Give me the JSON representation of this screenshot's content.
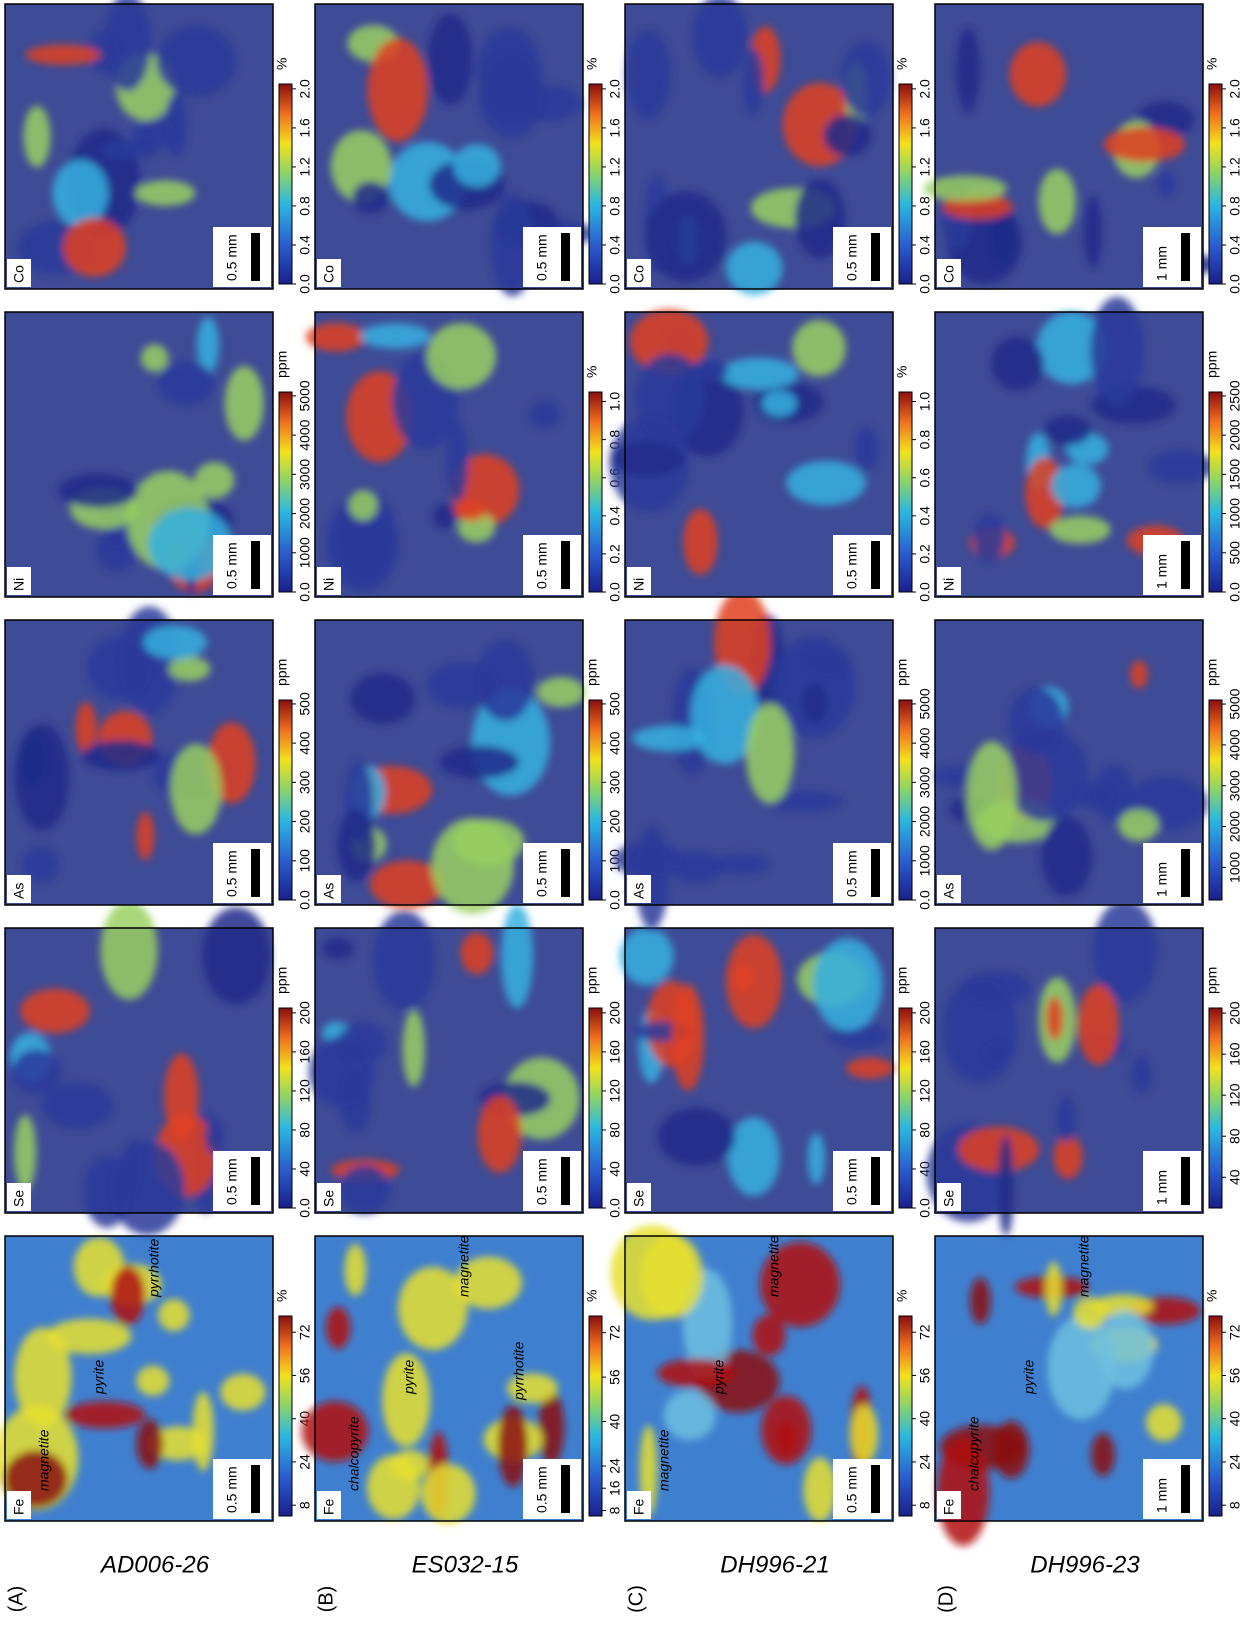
{
  "rows": [
    {
      "label": "(A)",
      "sample": "AD006-26",
      "panels": [
        {
          "element": "Fe",
          "scale": "0.5 mm",
          "unit": "%",
          "lim": [
            4,
            78
          ],
          "ticks": [
            8,
            24,
            40,
            56,
            72
          ],
          "annotations": [
            "magnetite",
            "pyrite",
            "pyrrhotite"
          ]
        },
        {
          "element": "Se",
          "scale": "0.5 mm",
          "unit": "ppm",
          "lim": [
            0,
            205
          ],
          "ticks": [
            {
              "value": 0,
              "label": "0.0"
            },
            40,
            80,
            120,
            160,
            200
          ]
        },
        {
          "element": "As",
          "scale": "0.5 mm",
          "unit": "ppm",
          "lim": [
            0,
            510
          ],
          "ticks": [
            {
              "value": 0,
              "label": "0.0"
            },
            100,
            200,
            300,
            400,
            500
          ]
        },
        {
          "element": "Ni",
          "scale": "0.5 mm",
          "unit": "ppm",
          "lim": [
            0,
            5100
          ],
          "ticks": [
            {
              "value": 0,
              "label": "0.0"
            },
            1000,
            2000,
            3000,
            4000,
            5000
          ]
        },
        {
          "element": "Co",
          "scale": "0.5 mm",
          "unit": "%",
          "lim": [
            0,
            2.05
          ],
          "ticks": [
            {
              "value": 0,
              "label": "0.0"
            },
            0.4,
            0.8,
            1.2,
            1.6,
            {
              "value": 2,
              "label": "2.0"
            }
          ]
        }
      ]
    },
    {
      "label": "(B)",
      "sample": "ES032-15",
      "panels": [
        {
          "element": "Fe",
          "scale": "0.5 mm",
          "unit": "%",
          "lim": [
            6,
            78
          ],
          "ticks": [
            8,
            16,
            24,
            40,
            56,
            72
          ],
          "annotations": [
            "chalcopyrite",
            "pyrite",
            "magnetite",
            "pyrrhotite"
          ]
        },
        {
          "element": "Se",
          "scale": "0.5 mm",
          "unit": "ppm",
          "lim": [
            0,
            205
          ],
          "ticks": [
            {
              "value": 0,
              "label": "0.0"
            },
            40,
            80,
            120,
            160,
            200
          ]
        },
        {
          "element": "As",
          "scale": "0.5 mm",
          "unit": "ppm",
          "lim": [
            0,
            510
          ],
          "ticks": [
            {
              "value": 0,
              "label": "0.0"
            },
            100,
            200,
            300,
            400,
            500
          ]
        },
        {
          "element": "Ni",
          "scale": "0.5 mm",
          "unit": "%",
          "lim": [
            0,
            1.05
          ],
          "ticks": [
            {
              "value": 0,
              "label": "0.0"
            },
            0.2,
            0.4,
            0.6,
            0.8,
            {
              "value": 1,
              "label": "1.0"
            }
          ]
        },
        {
          "element": "Co",
          "scale": "0.5 mm",
          "unit": "%",
          "lim": [
            0,
            2.05
          ],
          "ticks": [
            {
              "value": 0,
              "label": "0.0"
            },
            0.4,
            0.8,
            1.2,
            1.6,
            {
              "value": 2,
              "label": "2.0"
            }
          ]
        }
      ]
    },
    {
      "label": "(C)",
      "sample": "DH996-21",
      "panels": [
        {
          "element": "Fe",
          "scale": "0.5 mm",
          "unit": "%",
          "lim": [
            4,
            78
          ],
          "ticks": [
            8,
            24,
            40,
            56,
            72
          ],
          "annotations": [
            "magnetite",
            "pyrite",
            "magnetite"
          ]
        },
        {
          "element": "Se",
          "scale": "0.5 mm",
          "unit": "ppm",
          "lim": [
            0,
            205
          ],
          "ticks": [
            {
              "value": 0,
              "label": "0.0"
            },
            40,
            80,
            120,
            160,
            200
          ]
        },
        {
          "element": "As",
          "scale": "0.5 mm",
          "unit": "ppm",
          "lim": [
            0,
            5100
          ],
          "ticks": [
            {
              "value": 0,
              "label": "0.0"
            },
            1000,
            2000,
            3000,
            4000,
            5000
          ]
        },
        {
          "element": "Ni",
          "scale": "0.5 mm",
          "unit": "%",
          "lim": [
            0,
            1.05
          ],
          "ticks": [
            {
              "value": 0,
              "label": "0.0"
            },
            0.2,
            0.4,
            0.6,
            0.8,
            {
              "value": 1,
              "label": "1.0"
            }
          ]
        },
        {
          "element": "Co",
          "scale": "0.5 mm",
          "unit": "%",
          "lim": [
            0,
            2.05
          ],
          "ticks": [
            {
              "value": 0,
              "label": "0.0"
            },
            0.4,
            0.8,
            1.2,
            1.6,
            {
              "value": 2,
              "label": "2.0"
            }
          ]
        }
      ]
    },
    {
      "label": "(D)",
      "sample": "DH996-23",
      "panels": [
        {
          "element": "Fe",
          "scale": "1 mm",
          "unit": "%",
          "lim": [
            4,
            78
          ],
          "ticks": [
            8,
            24,
            40,
            56,
            72
          ],
          "annotations": [
            "chalcopyrite",
            "pyrite",
            "magnetite"
          ]
        },
        {
          "element": "Se",
          "scale": "1 mm",
          "unit": "ppm",
          "lim": [
            10,
            205
          ],
          "ticks": [
            40,
            80,
            120,
            160,
            200
          ]
        },
        {
          "element": "As",
          "scale": "1 mm",
          "unit": "ppm",
          "lim": [
            200,
            5100
          ],
          "ticks": [
            1000,
            2000,
            3000,
            4000,
            5000
          ]
        },
        {
          "element": "Ni",
          "scale": "1 mm",
          "unit": "ppm",
          "lim": [
            0,
            2550
          ],
          "ticks": [
            {
              "value": 0,
              "label": "0.0"
            },
            500,
            1000,
            1500,
            2000,
            2500
          ]
        },
        {
          "element": "Co",
          "scale": "1 mm",
          "unit": "%",
          "lim": [
            0,
            2.05
          ],
          "ticks": [
            {
              "value": 0,
              "label": "0.0"
            },
            0.4,
            0.8,
            1.2,
            1.6,
            {
              "value": 2,
              "label": "2.0"
            }
          ]
        }
      ]
    }
  ]
}
